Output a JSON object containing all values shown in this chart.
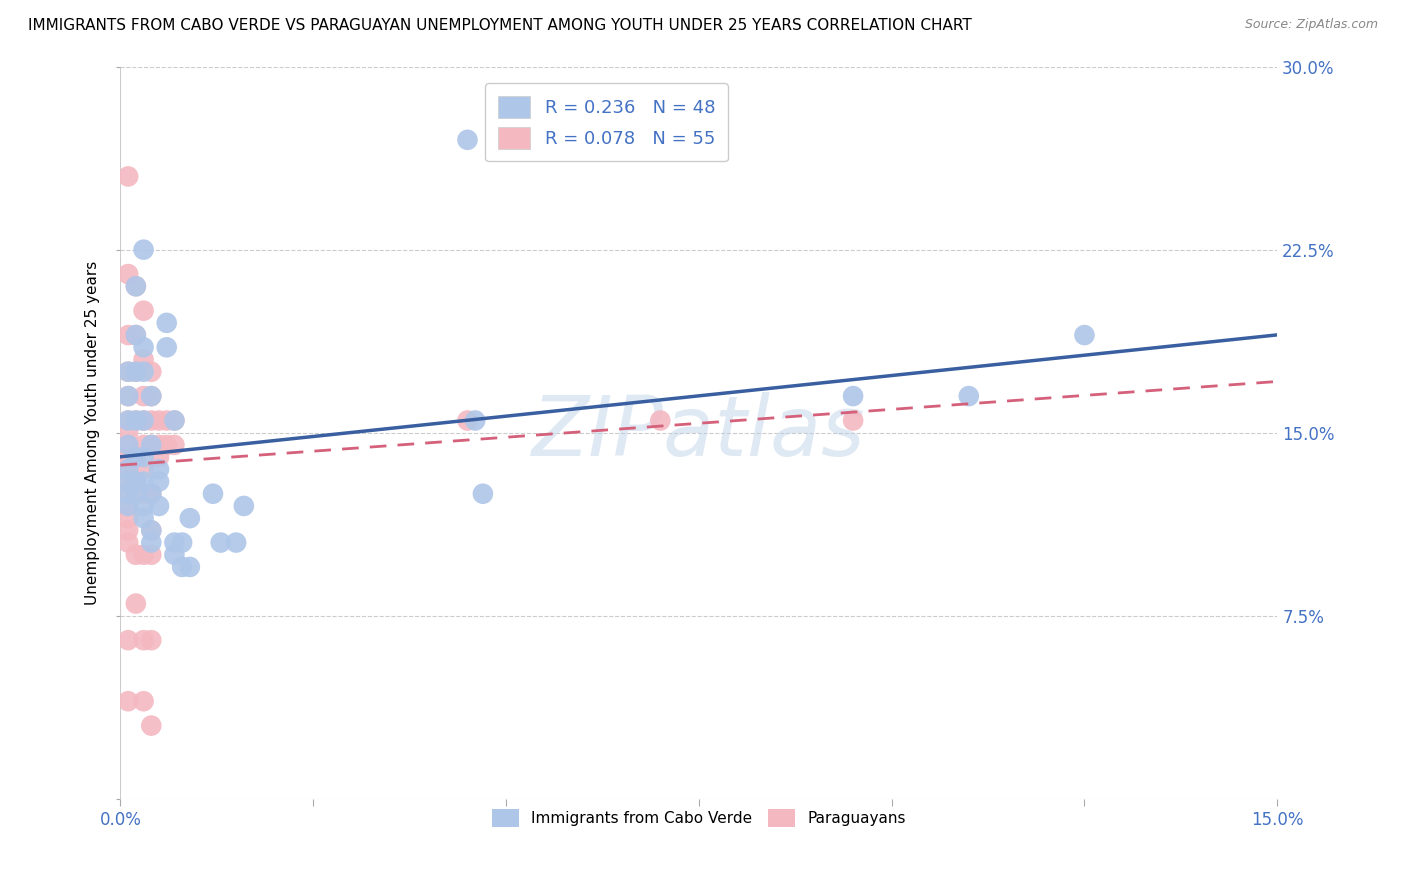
{
  "title": "IMMIGRANTS FROM CABO VERDE VS PARAGUAYAN UNEMPLOYMENT AMONG YOUTH UNDER 25 YEARS CORRELATION CHART",
  "source": "Source: ZipAtlas.com",
  "ylabel": "Unemployment Among Youth under 25 years",
  "xlim": [
    0.0,
    0.15
  ],
  "ylim": [
    0.0,
    0.3
  ],
  "yticks": [
    0.0,
    0.075,
    0.15,
    0.225,
    0.3
  ],
  "yticklabels": [
    "",
    "7.5%",
    "15.0%",
    "22.5%",
    "30.0%"
  ],
  "legend_labels_bottom": [
    "Immigrants from Cabo Verde",
    "Paraguayans"
  ],
  "watermark": "ZIPatlas",
  "blue_color": "#aec6e8",
  "blue_line_color": "#3a5fa0",
  "pink_color": "#f4b8c1",
  "pink_line_color": "#d4607a",
  "blue_scatter": [
    [
      0.001,
      0.135
    ],
    [
      0.001,
      0.145
    ],
    [
      0.001,
      0.155
    ],
    [
      0.001,
      0.165
    ],
    [
      0.001,
      0.175
    ],
    [
      0.001,
      0.13
    ],
    [
      0.001,
      0.125
    ],
    [
      0.001,
      0.12
    ],
    [
      0.002,
      0.21
    ],
    [
      0.002,
      0.19
    ],
    [
      0.002,
      0.175
    ],
    [
      0.002,
      0.155
    ],
    [
      0.002,
      0.14
    ],
    [
      0.002,
      0.13
    ],
    [
      0.002,
      0.125
    ],
    [
      0.003,
      0.225
    ],
    [
      0.003,
      0.185
    ],
    [
      0.003,
      0.175
    ],
    [
      0.003,
      0.155
    ],
    [
      0.003,
      0.14
    ],
    [
      0.003,
      0.13
    ],
    [
      0.003,
      0.12
    ],
    [
      0.003,
      0.115
    ],
    [
      0.004,
      0.165
    ],
    [
      0.004,
      0.145
    ],
    [
      0.004,
      0.125
    ],
    [
      0.004,
      0.11
    ],
    [
      0.004,
      0.105
    ],
    [
      0.005,
      0.135
    ],
    [
      0.005,
      0.13
    ],
    [
      0.005,
      0.12
    ],
    [
      0.006,
      0.195
    ],
    [
      0.006,
      0.185
    ],
    [
      0.007,
      0.155
    ],
    [
      0.007,
      0.105
    ],
    [
      0.007,
      0.1
    ],
    [
      0.008,
      0.105
    ],
    [
      0.008,
      0.095
    ],
    [
      0.009,
      0.115
    ],
    [
      0.009,
      0.095
    ],
    [
      0.012,
      0.125
    ],
    [
      0.013,
      0.105
    ],
    [
      0.015,
      0.105
    ],
    [
      0.016,
      0.12
    ],
    [
      0.045,
      0.27
    ],
    [
      0.046,
      0.155
    ],
    [
      0.047,
      0.125
    ],
    [
      0.095,
      0.165
    ],
    [
      0.11,
      0.165
    ],
    [
      0.125,
      0.19
    ]
  ],
  "pink_scatter": [
    [
      0.001,
      0.255
    ],
    [
      0.001,
      0.215
    ],
    [
      0.001,
      0.19
    ],
    [
      0.001,
      0.175
    ],
    [
      0.001,
      0.165
    ],
    [
      0.001,
      0.155
    ],
    [
      0.001,
      0.15
    ],
    [
      0.001,
      0.145
    ],
    [
      0.001,
      0.14
    ],
    [
      0.001,
      0.135
    ],
    [
      0.001,
      0.13
    ],
    [
      0.001,
      0.125
    ],
    [
      0.001,
      0.12
    ],
    [
      0.001,
      0.115
    ],
    [
      0.001,
      0.11
    ],
    [
      0.001,
      0.105
    ],
    [
      0.001,
      0.065
    ],
    [
      0.001,
      0.04
    ],
    [
      0.002,
      0.21
    ],
    [
      0.002,
      0.19
    ],
    [
      0.002,
      0.175
    ],
    [
      0.002,
      0.155
    ],
    [
      0.002,
      0.14
    ],
    [
      0.002,
      0.13
    ],
    [
      0.002,
      0.1
    ],
    [
      0.002,
      0.08
    ],
    [
      0.003,
      0.2
    ],
    [
      0.003,
      0.18
    ],
    [
      0.003,
      0.165
    ],
    [
      0.003,
      0.155
    ],
    [
      0.003,
      0.145
    ],
    [
      0.003,
      0.135
    ],
    [
      0.003,
      0.125
    ],
    [
      0.003,
      0.1
    ],
    [
      0.003,
      0.065
    ],
    [
      0.003,
      0.04
    ],
    [
      0.004,
      0.175
    ],
    [
      0.004,
      0.165
    ],
    [
      0.004,
      0.155
    ],
    [
      0.004,
      0.145
    ],
    [
      0.004,
      0.125
    ],
    [
      0.004,
      0.11
    ],
    [
      0.004,
      0.1
    ],
    [
      0.004,
      0.065
    ],
    [
      0.004,
      0.03
    ],
    [
      0.005,
      0.155
    ],
    [
      0.005,
      0.145
    ],
    [
      0.005,
      0.14
    ],
    [
      0.006,
      0.155
    ],
    [
      0.006,
      0.145
    ],
    [
      0.007,
      0.155
    ],
    [
      0.007,
      0.145
    ],
    [
      0.045,
      0.155
    ],
    [
      0.07,
      0.155
    ],
    [
      0.095,
      0.155
    ]
  ],
  "background_color": "#ffffff",
  "grid_color": "#cccccc"
}
